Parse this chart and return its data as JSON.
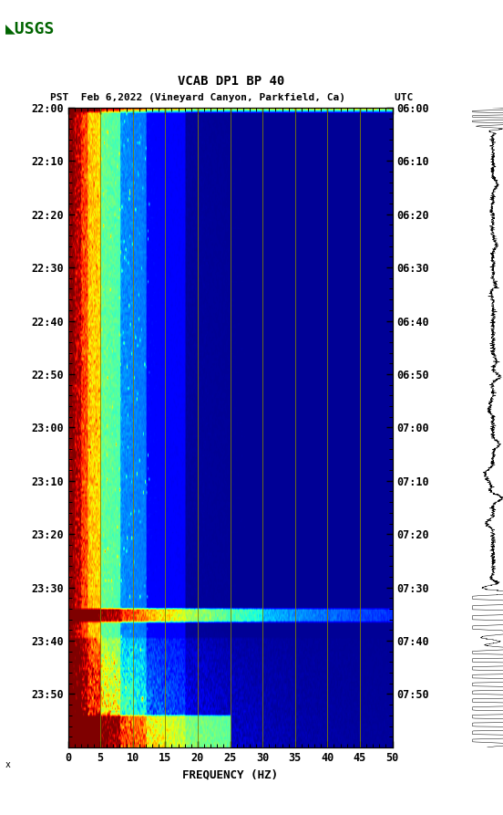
{
  "title_line1": "VCAB DP1 BP 40",
  "title_line2": "PST  Feb 6,2022 (Vineyard Canyon, Parkfield, Ca)        UTC",
  "xlabel": "FREQUENCY (HZ)",
  "left_times": [
    "22:00",
    "22:10",
    "22:20",
    "22:30",
    "22:40",
    "22:50",
    "23:00",
    "23:10",
    "23:20",
    "23:30",
    "23:40",
    "23:50"
  ],
  "right_times": [
    "06:00",
    "06:10",
    "06:20",
    "06:30",
    "06:40",
    "06:50",
    "07:00",
    "07:10",
    "07:20",
    "07:30",
    "07:40",
    "07:50"
  ],
  "freq_min": 0,
  "freq_max": 50,
  "freq_ticks": [
    0,
    5,
    10,
    15,
    20,
    25,
    30,
    35,
    40,
    45,
    50
  ],
  "n_time": 240,
  "n_freq": 500,
  "background_color": "#ffffff",
  "grid_color": "#808000",
  "grid_linewidth": 0.7,
  "grid_x_positions": [
    5,
    10,
    15,
    20,
    25,
    30,
    35,
    40,
    45
  ],
  "usgs_logo_color": "#006400"
}
